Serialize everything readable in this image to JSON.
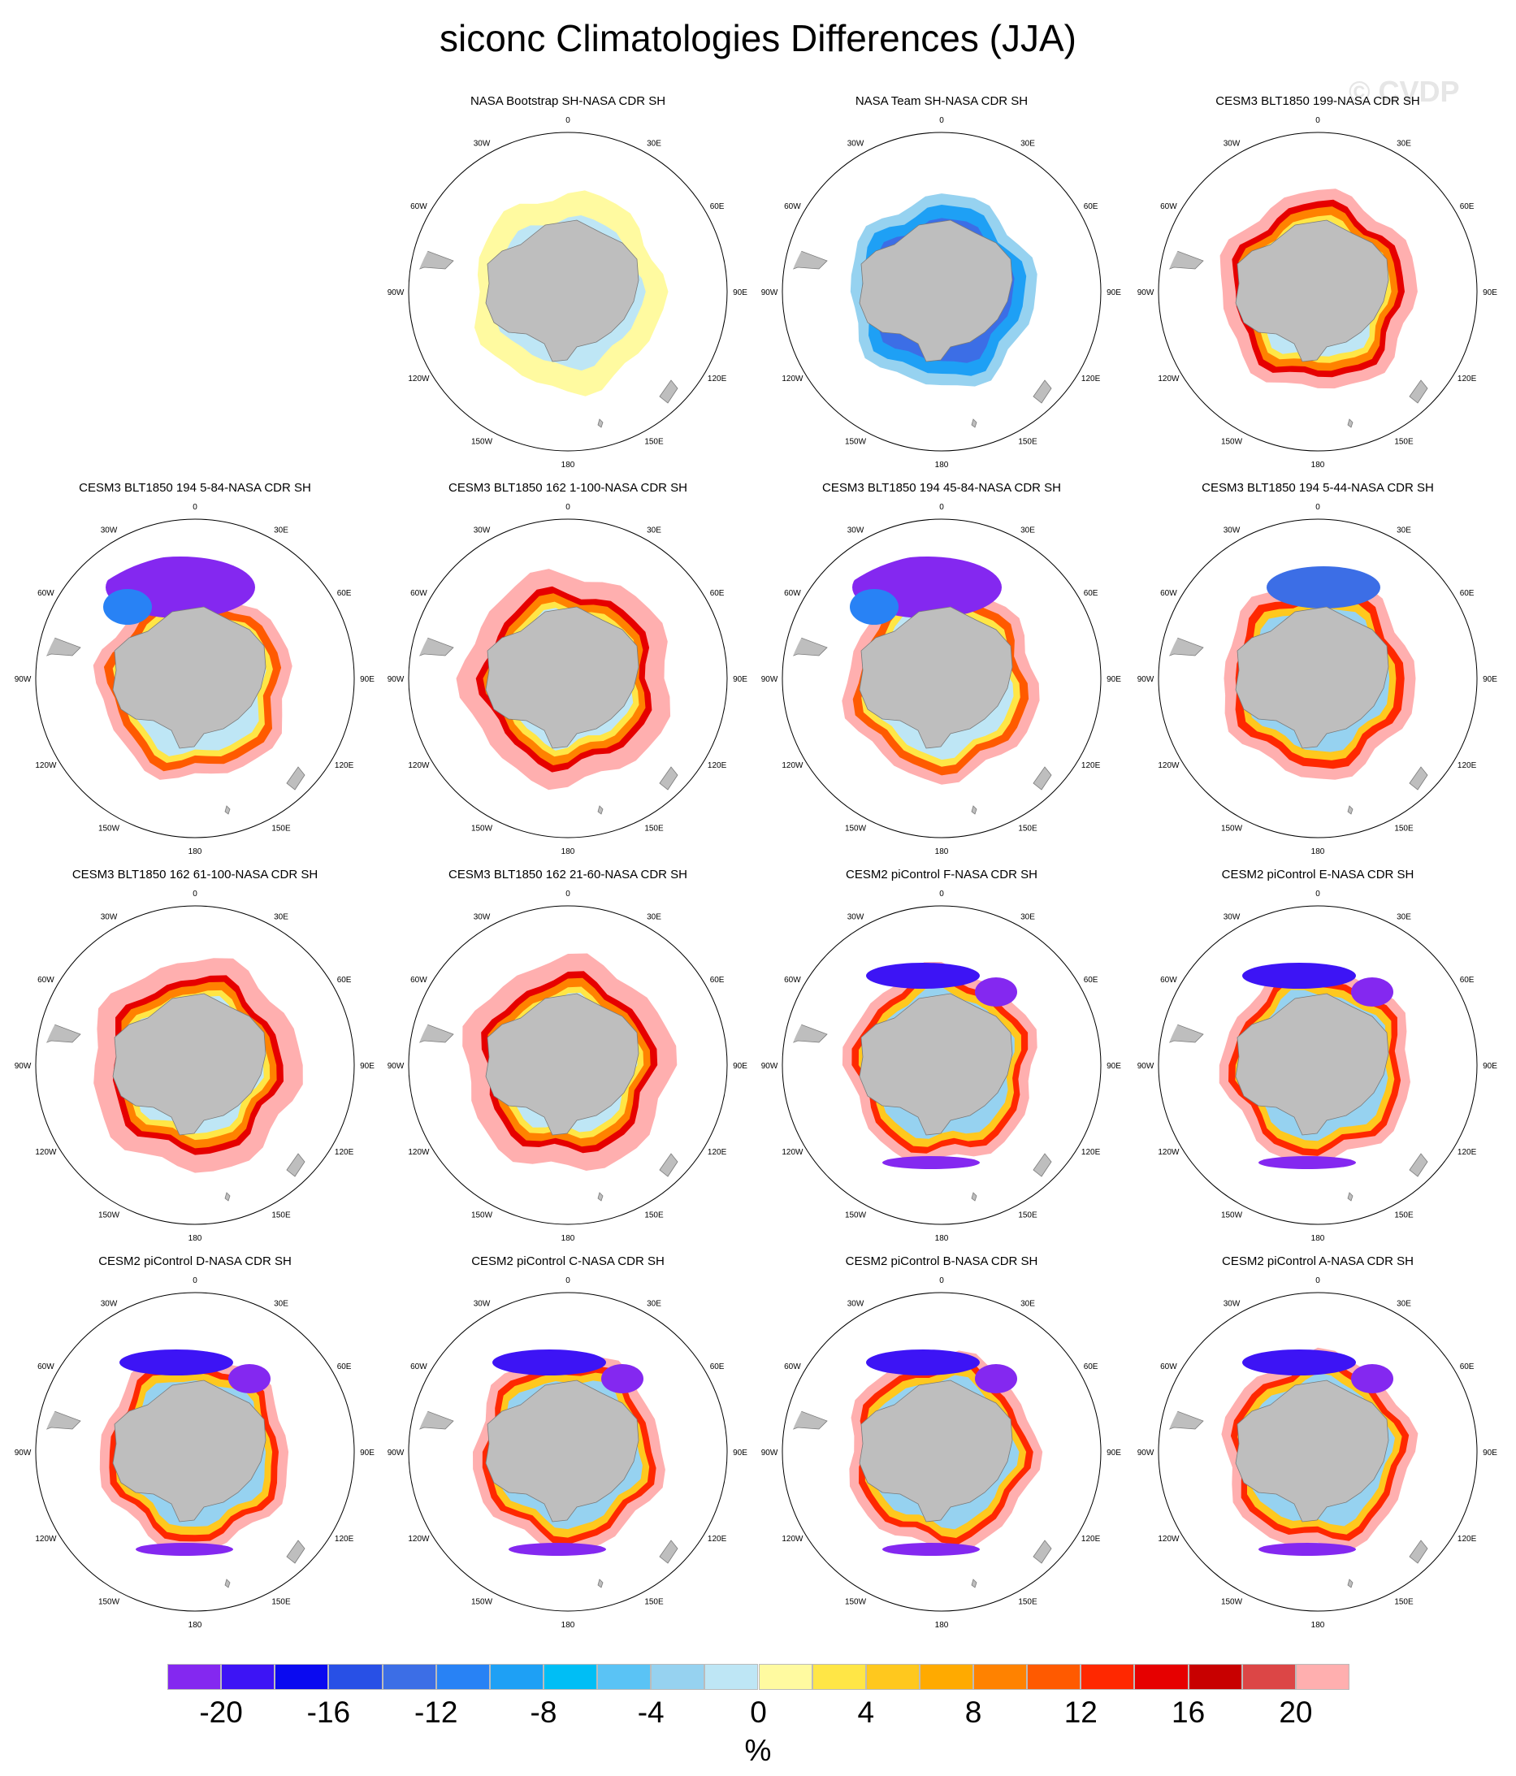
{
  "title": "siconc Climatologies Differences (JJA)",
  "watermark": "© CVDP",
  "longitude_labels": [
    "0",
    "30E",
    "60E",
    "90E",
    "120E",
    "150E",
    "180",
    "150W",
    "120W",
    "90W",
    "60W",
    "30W"
  ],
  "panels": [
    {
      "title": "NASA Bootstrap SH-NASA CDR SH",
      "pattern": "bootstrap"
    },
    {
      "title": "NASA Team SH-NASA CDR SH",
      "pattern": "team"
    },
    {
      "title": "CESM3 BLT1850 199-NASA CDR SH",
      "pattern": "warm"
    },
    {
      "title": "CESM3 BLT1850 194 5-84-NASA CDR SH",
      "pattern": "purple_north"
    },
    {
      "title": "CESM3 BLT1850 162 1-100-NASA CDR SH",
      "pattern": "warm_wide"
    },
    {
      "title": "CESM3 BLT1850 194 45-84-NASA CDR SH",
      "pattern": "purple_north"
    },
    {
      "title": "CESM3 BLT1850 194 5-44-NASA CDR SH",
      "pattern": "mixed"
    },
    {
      "title": "CESM3 BLT1850 162 61-100-NASA CDR SH",
      "pattern": "warm_wide"
    },
    {
      "title": "CESM3 BLT1850 162 21-60-NASA CDR SH",
      "pattern": "warm_wide"
    },
    {
      "title": "CESM2 piControl F-NASA CDR SH",
      "pattern": "cesm2"
    },
    {
      "title": "CESM2 piControl E-NASA CDR SH",
      "pattern": "cesm2"
    },
    {
      "title": "CESM2 piControl D-NASA CDR SH",
      "pattern": "cesm2"
    },
    {
      "title": "CESM2 piControl C-NASA CDR SH",
      "pattern": "cesm2"
    },
    {
      "title": "CESM2 piControl B-NASA CDR SH",
      "pattern": "cesm2"
    },
    {
      "title": "CESM2 piControl A-NASA CDR SH",
      "pattern": "cesm2"
    }
  ],
  "colorbar": {
    "units": "%",
    "ticks": [
      "-20",
      "-16",
      "-12",
      "-8",
      "-4",
      "0",
      "4",
      "8",
      "12",
      "16",
      "20"
    ],
    "tick_values": [
      -20,
      -16,
      -12,
      -8,
      -4,
      0,
      4,
      8,
      12,
      16,
      20
    ],
    "levels_min": -22,
    "levels_max": 22,
    "level_step": 2,
    "colors": [
      "#8428f0",
      "#3d14f5",
      "#0a0af0",
      "#2850e6",
      "#3c6ee6",
      "#2882f5",
      "#1ea0f5",
      "#00bef5",
      "#5ac3f5",
      "#96d2f0",
      "#bee6f5",
      "#fffaa0",
      "#ffe646",
      "#ffc81e",
      "#ffaa00",
      "#ff8200",
      "#ff5a00",
      "#ff2800",
      "#e60000",
      "#c80000",
      "#dc4646",
      "#ffafaf"
    ]
  },
  "chart_data": {
    "type": "heatmap",
    "title": "siconc Climatologies Differences (JJA)",
    "variable": "siconc",
    "season": "JJA",
    "units": "%",
    "projection": "south polar stereographic",
    "panel_titles": [
      "NASA Bootstrap SH-NASA CDR SH",
      "NASA Team SH-NASA CDR SH",
      "CESM3 BLT1850 199-NASA CDR SH",
      "CESM3 BLT1850 194 5-84-NASA CDR SH",
      "CESM3 BLT1850 162 1-100-NASA CDR SH",
      "CESM3 BLT1850 194 45-84-NASA CDR SH",
      "CESM3 BLT1850 194 5-44-NASA CDR SH",
      "CESM3 BLT1850 162 61-100-NASA CDR SH",
      "CESM3 BLT1850 162 21-60-NASA CDR SH",
      "CESM2 piControl F-NASA CDR SH",
      "CESM2 piControl E-NASA CDR SH",
      "CESM2 piControl D-NASA CDR SH",
      "CESM2 piControl C-NASA CDR SH",
      "CESM2 piControl B-NASA CDR SH",
      "CESM2 piControl A-NASA CDR SH"
    ],
    "colorbar_range": [
      -22,
      22
    ],
    "colorbar_ticks": [
      -20,
      -16,
      -12,
      -8,
      -4,
      0,
      4,
      8,
      12,
      16,
      20
    ]
  }
}
